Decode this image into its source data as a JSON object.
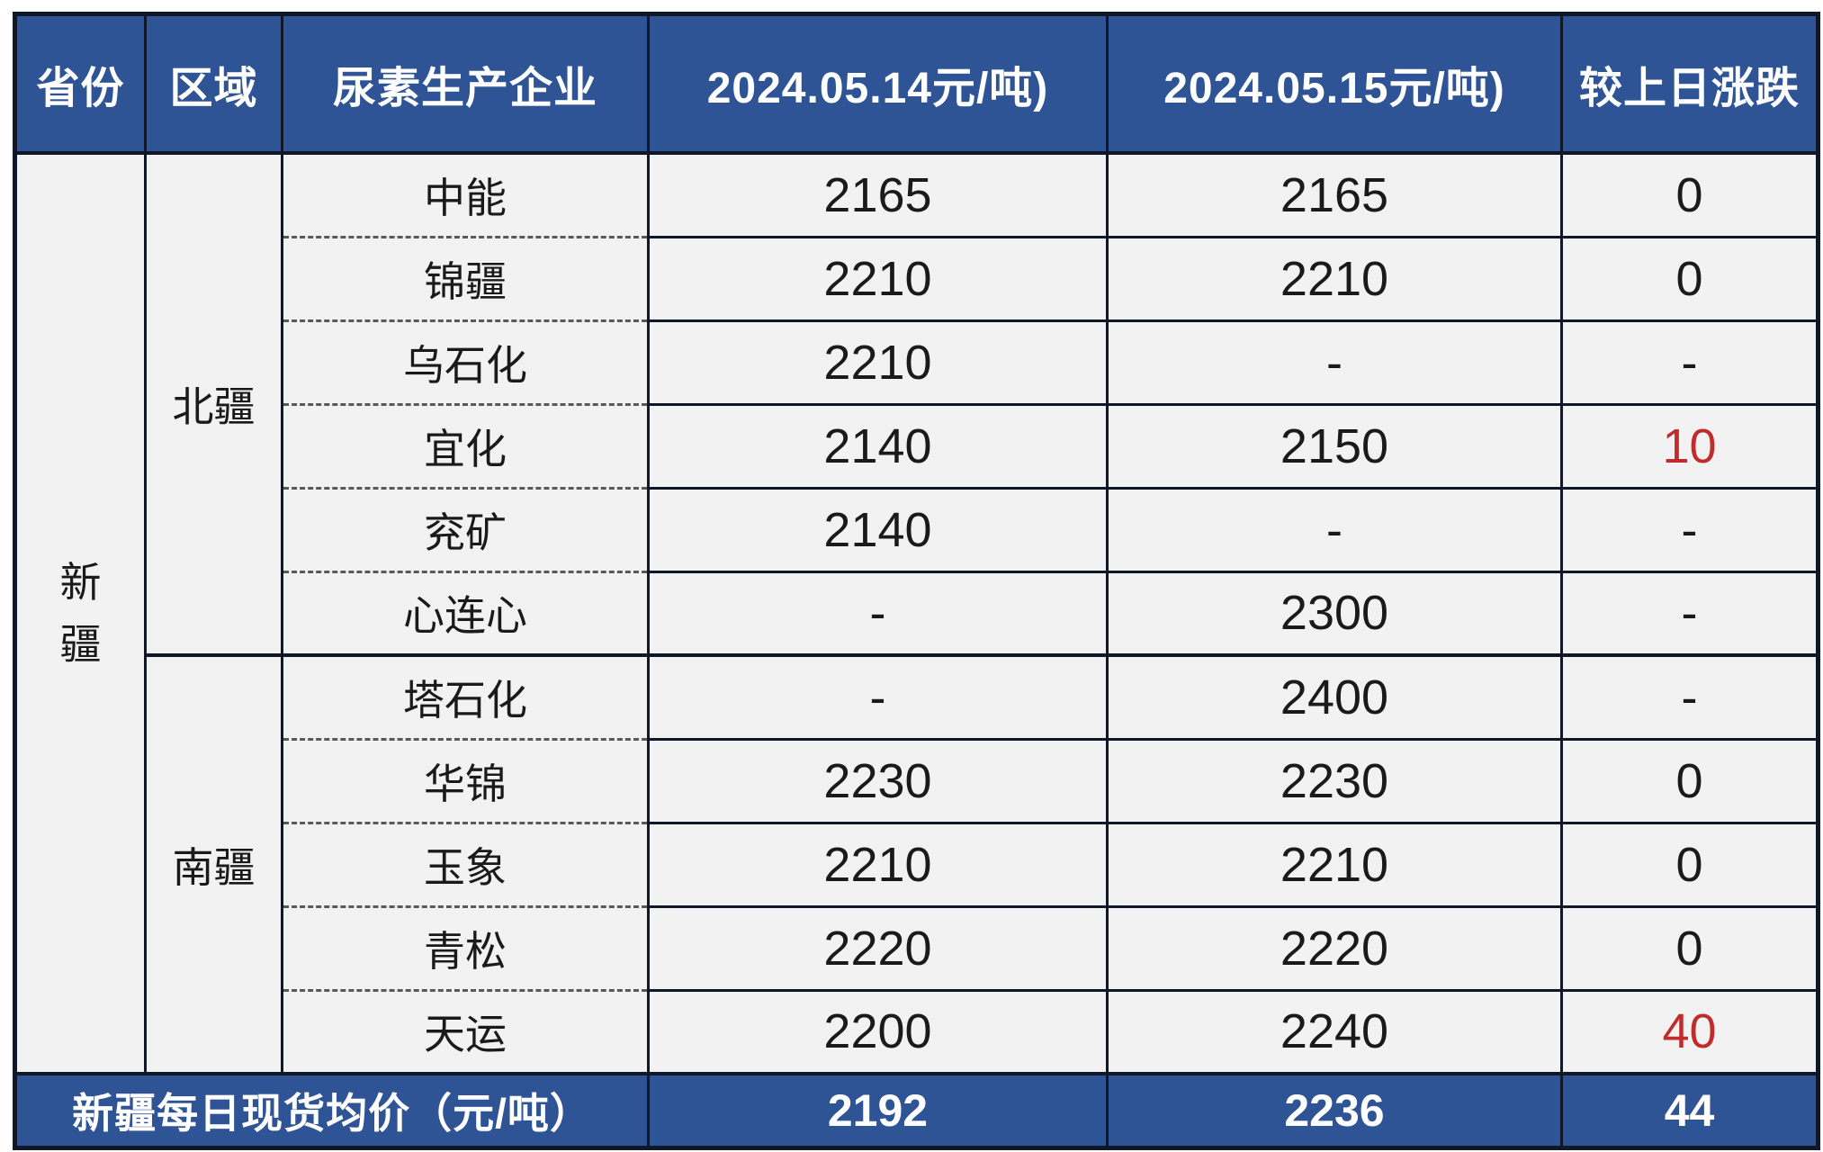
{
  "table": {
    "headers": [
      "省份",
      "区域",
      "尿素生产企业",
      "2024.05.14元/吨)",
      "2024.05.15元/吨)",
      "较上日涨跌"
    ],
    "province": "新疆",
    "regions": [
      {
        "name": "北疆",
        "rows": [
          {
            "company": "中能",
            "d14": "2165",
            "d15": "2165",
            "change": "0",
            "red": false
          },
          {
            "company": "锦疆",
            "d14": "2210",
            "d15": "2210",
            "change": "0",
            "red": false
          },
          {
            "company": "乌石化",
            "d14": "2210",
            "d15": "-",
            "change": "-",
            "red": false
          },
          {
            "company": "宜化",
            "d14": "2140",
            "d15": "2150",
            "change": "10",
            "red": true
          },
          {
            "company": "兖矿",
            "d14": "2140",
            "d15": "-",
            "change": "-",
            "red": false
          },
          {
            "company": "心连心",
            "d14": "-",
            "d15": "2300",
            "change": "-",
            "red": false
          }
        ]
      },
      {
        "name": "南疆",
        "rows": [
          {
            "company": "塔石化",
            "d14": "-",
            "d15": "2400",
            "change": "-",
            "red": false
          },
          {
            "company": "华锦",
            "d14": "2230",
            "d15": "2230",
            "change": "0",
            "red": false
          },
          {
            "company": "玉象",
            "d14": "2210",
            "d15": "2210",
            "change": "0",
            "red": false
          },
          {
            "company": "青松",
            "d14": "2220",
            "d15": "2220",
            "change": "0",
            "red": false
          },
          {
            "company": "天运",
            "d14": "2200",
            "d15": "2240",
            "change": "40",
            "red": true
          }
        ]
      }
    ],
    "footer": {
      "label": "新疆每日现货均价（元/吨）",
      "d14": "2192",
      "d15": "2236",
      "change": "44"
    }
  },
  "colors": {
    "header_bg": "#2F5496",
    "cell_bg": "#F2F2F2",
    "border": "#101828",
    "change_highlight_red": "#C02B2B"
  }
}
